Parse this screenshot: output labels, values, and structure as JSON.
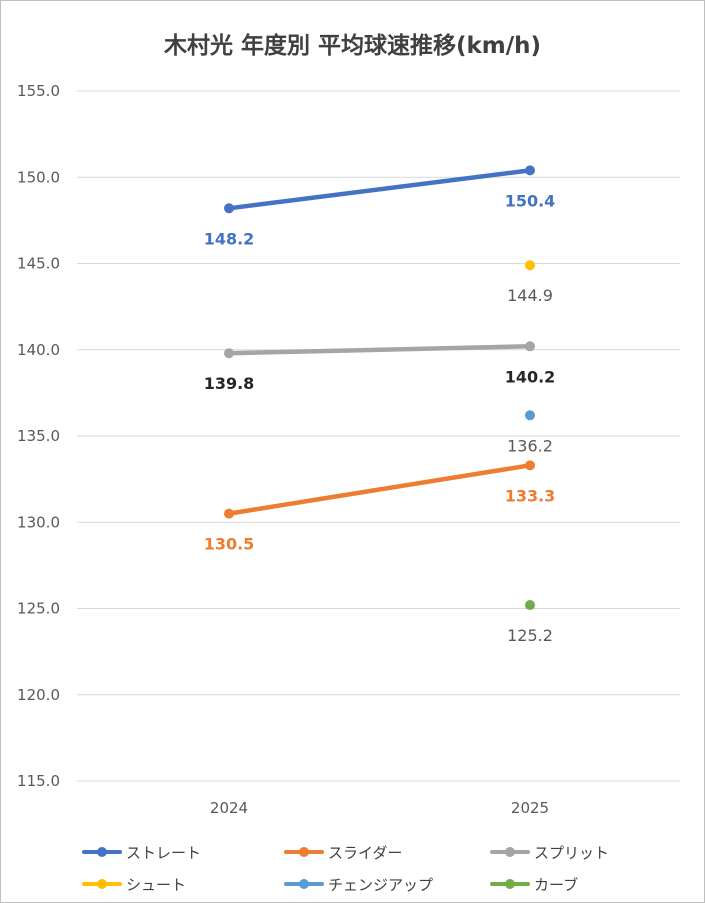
{
  "chart_data": {
    "type": "line",
    "title": "木村光 年度別 平均球速推移(km/h)",
    "xlabel": "",
    "ylabel": "",
    "categories": [
      "2024",
      "2025"
    ],
    "ylim": [
      115,
      155
    ],
    "yticks": [
      "115.0",
      "120.0",
      "125.0",
      "130.0",
      "135.0",
      "140.0",
      "145.0",
      "150.0",
      "155.0"
    ],
    "grid": true,
    "legend_position": "bottom",
    "series": [
      {
        "name": "ストレート",
        "values": [
          148.2,
          150.4
        ],
        "labels": [
          "148.2",
          "150.4"
        ],
        "color": "#4472c4",
        "label_color": "#4472c4"
      },
      {
        "name": "スライダー",
        "values": [
          130.5,
          133.3
        ],
        "labels": [
          "130.5",
          "133.3"
        ],
        "color": "#ed7d31",
        "label_color": "#ed7d31"
      },
      {
        "name": "スプリット",
        "values": [
          139.8,
          140.2
        ],
        "labels": [
          "139.8",
          "140.2"
        ],
        "color": "#a5a5a5",
        "label_color": "#262626"
      },
      {
        "name": "シュート",
        "values": [
          null,
          144.9
        ],
        "labels": [
          "",
          "144.9"
        ],
        "color": "#ffc000",
        "label_color": "#595959"
      },
      {
        "name": "チェンジアップ",
        "values": [
          null,
          136.2
        ],
        "labels": [
          "",
          "136.2"
        ],
        "color": "#5b9bd5",
        "label_color": "#595959"
      },
      {
        "name": "カーブ",
        "values": [
          null,
          125.2
        ],
        "labels": [
          "",
          "125.2"
        ],
        "color": "#70ad47",
        "label_color": "#595959"
      }
    ]
  }
}
